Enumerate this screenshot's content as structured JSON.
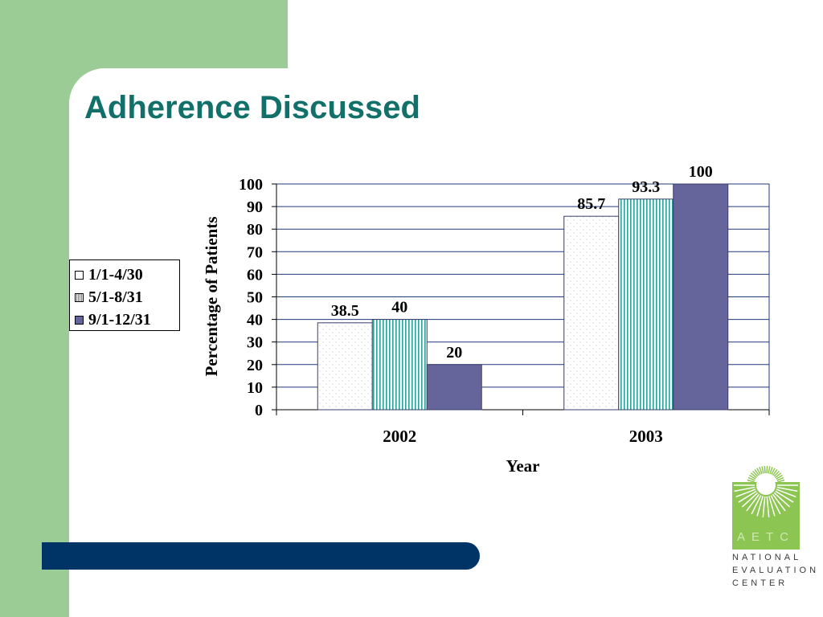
{
  "slide": {
    "title": "Adherence Discussed"
  },
  "colors": {
    "green_background": "#9ccc95",
    "title_teal": "#12706a",
    "footer_navy": "#003466",
    "series_teal": "#27a39a",
    "series_purple": "#66659b"
  },
  "logo": {
    "aetc": "AETC",
    "line1": "NATIONAL",
    "line2": "EVALUATION",
    "line3": "CENTER"
  },
  "chart_data": {
    "type": "bar",
    "categories": [
      "2002",
      "2003"
    ],
    "series": [
      {
        "name": "1/1-4/30",
        "values": [
          38.5,
          85.7
        ],
        "fill": "dotted-white"
      },
      {
        "name": "5/1-8/31",
        "values": [
          40,
          93.3
        ],
        "fill": "vertical-stripes-teal"
      },
      {
        "name": "9/1-12/31",
        "values": [
          20,
          100
        ],
        "fill": "solid-purple"
      }
    ],
    "data_labels": [
      [
        "38.5",
        "85.7"
      ],
      [
        "40",
        "93.3"
      ],
      [
        "20",
        "100"
      ]
    ],
    "xlabel": "Year",
    "ylabel": "Percentage of Patients",
    "ylim": [
      0,
      100
    ],
    "yticks": [
      0,
      10,
      20,
      30,
      40,
      50,
      60,
      70,
      80,
      90,
      100
    ],
    "grid": true,
    "legend_position": "left"
  }
}
